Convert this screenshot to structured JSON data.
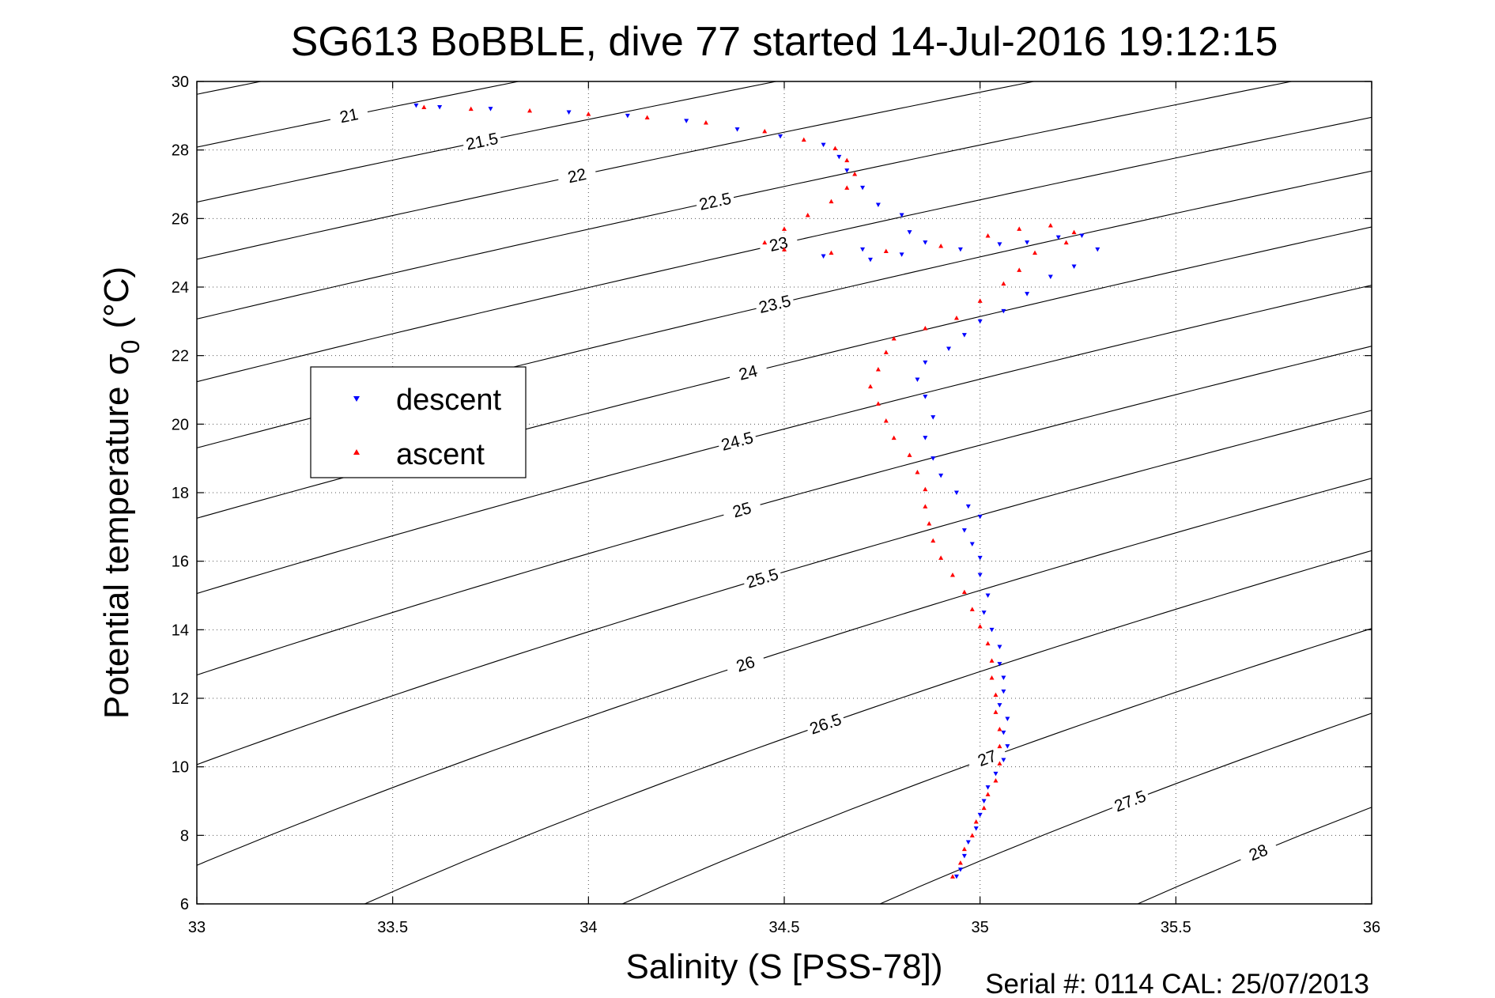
{
  "chart_data": {
    "type": "scatter",
    "title": "SG613 BoBBLE, dive 77 started 14-Jul-2016 19:12:15",
    "xlabel": "Salinity (S [PSS-78])",
    "ylabel": "Potential temperature",
    "ylabel_symbol": "σ",
    "ylabel_subscript": "0",
    "ylabel_unit": "(°C)",
    "xlim": [
      33,
      36
    ],
    "ylim": [
      6,
      30
    ],
    "xticks": [
      33,
      33.5,
      34,
      34.5,
      35,
      35.5,
      36
    ],
    "xtick_labels": [
      "33",
      "33.5",
      "34",
      "34.5",
      "35",
      "35.5",
      "36"
    ],
    "yticks": [
      6,
      8,
      10,
      12,
      14,
      16,
      18,
      20,
      22,
      24,
      26,
      28,
      30
    ],
    "ytick_labels": [
      "6",
      "8",
      "10",
      "12",
      "14",
      "16",
      "18",
      "20",
      "22",
      "24",
      "26",
      "28",
      "30"
    ],
    "grid": true,
    "legend_position": "left-middle",
    "density_contours": {
      "levels": [
        20.5,
        21,
        21.5,
        22,
        22.5,
        23,
        23.5,
        24,
        24.5,
        25,
        25.5,
        26,
        26.5,
        27,
        27.5,
        28
      ],
      "label_precision": 1
    },
    "series": [
      {
        "name": "descent",
        "color": "#0000ff",
        "marker": "triangle-down",
        "points": [
          [
            33.56,
            29.3
          ],
          [
            33.62,
            29.25
          ],
          [
            33.75,
            29.2
          ],
          [
            33.95,
            29.1
          ],
          [
            34.1,
            29.0
          ],
          [
            34.25,
            28.85
          ],
          [
            34.38,
            28.6
          ],
          [
            34.49,
            28.4
          ],
          [
            34.6,
            28.15
          ],
          [
            34.64,
            27.8
          ],
          [
            34.66,
            27.4
          ],
          [
            34.7,
            26.9
          ],
          [
            34.74,
            26.4
          ],
          [
            34.8,
            26.1
          ],
          [
            34.82,
            25.6
          ],
          [
            34.86,
            25.3
          ],
          [
            34.7,
            25.1
          ],
          [
            34.6,
            24.9
          ],
          [
            34.72,
            24.8
          ],
          [
            34.8,
            24.95
          ],
          [
            34.95,
            25.1
          ],
          [
            35.05,
            25.25
          ],
          [
            35.12,
            25.3
          ],
          [
            35.2,
            25.45
          ],
          [
            35.26,
            25.5
          ],
          [
            35.3,
            25.1
          ],
          [
            35.24,
            24.6
          ],
          [
            35.18,
            24.3
          ],
          [
            35.12,
            23.8
          ],
          [
            35.06,
            23.3
          ],
          [
            35.0,
            23.0
          ],
          [
            34.96,
            22.6
          ],
          [
            34.92,
            22.2
          ],
          [
            34.86,
            21.8
          ],
          [
            34.84,
            21.3
          ],
          [
            34.86,
            20.8
          ],
          [
            34.88,
            20.2
          ],
          [
            34.86,
            19.6
          ],
          [
            34.88,
            19.0
          ],
          [
            34.9,
            18.5
          ],
          [
            34.94,
            18.0
          ],
          [
            34.97,
            17.6
          ],
          [
            35.0,
            17.3
          ],
          [
            34.96,
            16.9
          ],
          [
            34.98,
            16.5
          ],
          [
            35.0,
            16.1
          ],
          [
            35.0,
            15.6
          ],
          [
            35.02,
            15.0
          ],
          [
            35.01,
            14.5
          ],
          [
            35.03,
            14.0
          ],
          [
            35.05,
            13.5
          ],
          [
            35.05,
            13.0
          ],
          [
            35.06,
            12.6
          ],
          [
            35.06,
            12.2
          ],
          [
            35.05,
            11.8
          ],
          [
            35.07,
            11.4
          ],
          [
            35.06,
            11.0
          ],
          [
            35.07,
            10.6
          ],
          [
            35.06,
            10.2
          ],
          [
            35.04,
            9.8
          ],
          [
            35.02,
            9.4
          ],
          [
            35.01,
            9.0
          ],
          [
            35.0,
            8.6
          ],
          [
            34.99,
            8.2
          ],
          [
            34.97,
            7.8
          ],
          [
            34.96,
            7.4
          ],
          [
            34.95,
            7.0
          ],
          [
            34.94,
            6.8
          ]
        ]
      },
      {
        "name": "ascent",
        "color": "#ff0000",
        "marker": "triangle-up",
        "points": [
          [
            33.58,
            29.25
          ],
          [
            33.7,
            29.2
          ],
          [
            33.85,
            29.15
          ],
          [
            34.0,
            29.05
          ],
          [
            34.15,
            28.95
          ],
          [
            34.3,
            28.8
          ],
          [
            34.45,
            28.55
          ],
          [
            34.55,
            28.3
          ],
          [
            34.63,
            28.05
          ],
          [
            34.66,
            27.7
          ],
          [
            34.68,
            27.3
          ],
          [
            34.66,
            26.9
          ],
          [
            34.62,
            26.5
          ],
          [
            34.56,
            26.1
          ],
          [
            34.5,
            25.7
          ],
          [
            34.45,
            25.3
          ],
          [
            34.5,
            25.1
          ],
          [
            34.62,
            25.0
          ],
          [
            34.76,
            25.05
          ],
          [
            34.9,
            25.2
          ],
          [
            35.02,
            25.5
          ],
          [
            35.1,
            25.7
          ],
          [
            35.18,
            25.8
          ],
          [
            35.24,
            25.6
          ],
          [
            35.22,
            25.3
          ],
          [
            35.14,
            25.0
          ],
          [
            35.1,
            24.5
          ],
          [
            35.06,
            24.1
          ],
          [
            35.0,
            23.6
          ],
          [
            34.94,
            23.1
          ],
          [
            34.86,
            22.8
          ],
          [
            34.78,
            22.5
          ],
          [
            34.76,
            22.1
          ],
          [
            34.74,
            21.6
          ],
          [
            34.72,
            21.1
          ],
          [
            34.74,
            20.6
          ],
          [
            34.76,
            20.1
          ],
          [
            34.78,
            19.6
          ],
          [
            34.82,
            19.1
          ],
          [
            34.84,
            18.6
          ],
          [
            34.86,
            18.1
          ],
          [
            34.86,
            17.6
          ],
          [
            34.87,
            17.1
          ],
          [
            34.88,
            16.6
          ],
          [
            34.9,
            16.1
          ],
          [
            34.93,
            15.6
          ],
          [
            34.96,
            15.1
          ],
          [
            34.98,
            14.6
          ],
          [
            35.0,
            14.1
          ],
          [
            35.02,
            13.6
          ],
          [
            35.03,
            13.1
          ],
          [
            35.03,
            12.6
          ],
          [
            35.04,
            12.1
          ],
          [
            35.04,
            11.6
          ],
          [
            35.05,
            11.1
          ],
          [
            35.05,
            10.6
          ],
          [
            35.05,
            10.1
          ],
          [
            35.04,
            9.6
          ],
          [
            35.02,
            9.2
          ],
          [
            35.01,
            8.8
          ],
          [
            34.99,
            8.4
          ],
          [
            34.98,
            8.0
          ],
          [
            34.96,
            7.6
          ],
          [
            34.95,
            7.2
          ],
          [
            34.93,
            6.8
          ]
        ]
      }
    ],
    "footer_text": "Serial #: 0114  CAL: 25/07/2013"
  }
}
